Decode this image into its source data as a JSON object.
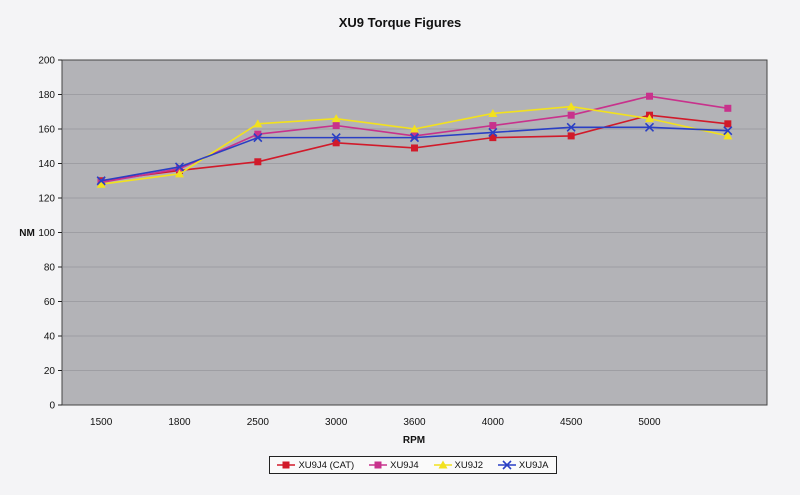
{
  "chart_data": {
    "type": "line",
    "title": "XU9 Torque Figures",
    "xlabel": "RPM",
    "ylabel": "NM",
    "categories": [
      "1500",
      "1800",
      "2500",
      "3000",
      "3600",
      "4000",
      "4500",
      "5000",
      ""
    ],
    "ylim": [
      0,
      200
    ],
    "yticks": [
      0,
      20,
      40,
      60,
      80,
      100,
      120,
      140,
      160,
      180,
      200
    ],
    "grid": true,
    "legend_position": "bottom",
    "plot_background": "#b3b3b7",
    "series": [
      {
        "name": "XU9J4 (CAT)",
        "color": "#d11a2a",
        "marker": "square",
        "values": [
          130,
          136,
          141,
          152,
          149,
          155,
          156,
          168,
          163
        ]
      },
      {
        "name": "XU9J4",
        "color": "#c8328c",
        "marker": "square",
        "values": [
          129,
          137,
          157,
          162,
          156,
          162,
          168,
          179,
          172
        ]
      },
      {
        "name": "XU9J2",
        "color": "#f2e11e",
        "marker": "triangle",
        "values": [
          128,
          134,
          163,
          166,
          160,
          169,
          173,
          166,
          156
        ]
      },
      {
        "name": "XU9JA",
        "color": "#2a3fc4",
        "marker": "x",
        "values": [
          130,
          138,
          155,
          155,
          155,
          158,
          161,
          161,
          159
        ]
      }
    ]
  }
}
